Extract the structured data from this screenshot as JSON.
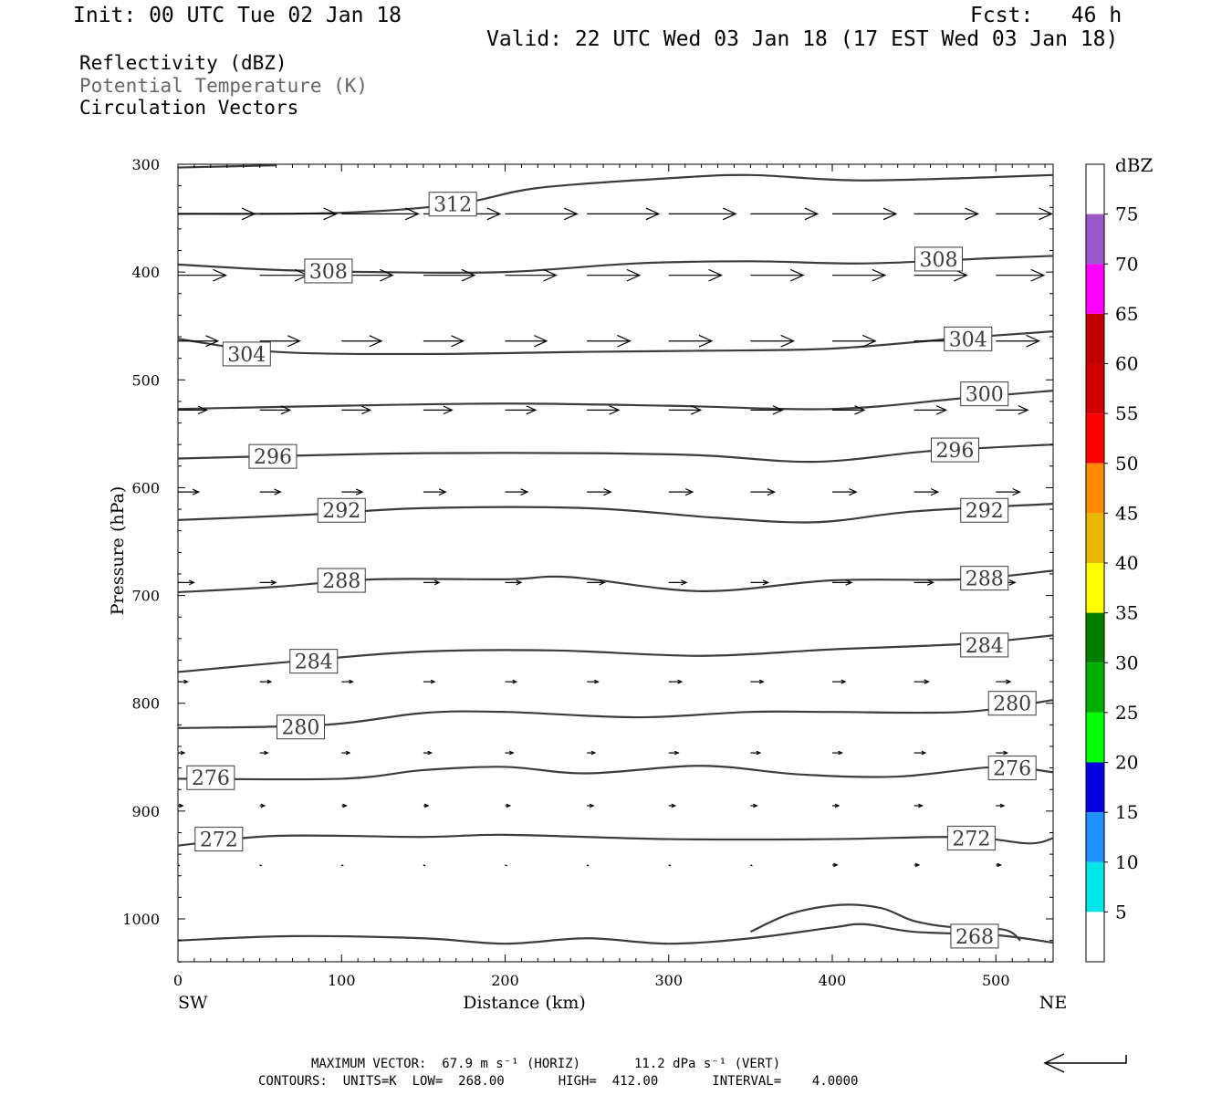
{
  "header": {
    "init": "Init: 00 UTC Tue 02 Jan 18",
    "fcst": "Fcst:   46 h",
    "valid": "Valid: 22 UTC Wed 03 Jan 18 (17 EST Wed 03 Jan 18)"
  },
  "legend": {
    "reflectivity": "Reflectivity (dBZ)",
    "theta": "Potential Temperature (K)",
    "vectors": "Circulation Vectors"
  },
  "footer": {
    "max_vector": "MAXIMUM VECTOR:  67.9 m s⁻¹ (HORIZ)       11.2 dPa s⁻¹ (VERT)",
    "contours": "CONTOURS:  UNITS=K  LOW=  268.00       HIGH=  412.00       INTERVAL=    4.0000"
  },
  "chart_data": {
    "type": "line",
    "title": "",
    "xlabel": "Distance (km)",
    "ylabel": "Pressure (hPa)",
    "xlim": [
      0,
      535
    ],
    "ylim": [
      1040,
      300
    ],
    "x_ticks": [
      0,
      100,
      200,
      300,
      400,
      500
    ],
    "y_ticks": [
      300,
      400,
      500,
      600,
      700,
      800,
      900,
      1000
    ],
    "x_end_labels": {
      "left": "SW",
      "right": "NE"
    },
    "colorbar": {
      "title": "dBZ",
      "labels": [
        75,
        70,
        65,
        60,
        55,
        50,
        45,
        40,
        35,
        30,
        25,
        20,
        15,
        10,
        5
      ],
      "colors": [
        "#ffffff",
        "#9b59c9",
        "#ff00ff",
        "#c00000",
        "#d40000",
        "#ff0000",
        "#ff8c00",
        "#e6b800",
        "#ffff00",
        "#008000",
        "#00b000",
        "#00ff00",
        "#0000e0",
        "#1e90ff",
        "#00e5e5",
        "#ffffff"
      ]
    },
    "series": [
      {
        "name": "312",
        "x": [
          0,
          60,
          150,
          190,
          230,
          300,
          350,
          420,
          535
        ],
        "y": [
          302,
          301,
          301,
          301,
          301,
          301,
          301,
          301,
          301
        ]
      },
      {
        "name": "312",
        "x": [
          0,
          100,
          170,
          220,
          300,
          350,
          420,
          535
        ],
        "y": [
          346,
          345,
          337,
          322,
          313,
          310,
          315,
          310
        ]
      },
      {
        "name": "308",
        "x": [
          0,
          60,
          120,
          200,
          280,
          350,
          420,
          500,
          535
        ],
        "y": [
          393,
          398,
          400,
          400,
          392,
          390,
          392,
          387,
          385
        ]
      },
      {
        "name": "304",
        "x": [
          0,
          60,
          150,
          250,
          320,
          400,
          480,
          535
        ],
        "y": [
          462,
          474,
          476,
          474,
          473,
          471,
          461,
          455
        ]
      },
      {
        "name": "300",
        "x": [
          0,
          100,
          200,
          300,
          400,
          480,
          535
        ],
        "y": [
          527,
          524,
          522,
          524,
          527,
          517,
          510
        ]
      },
      {
        "name": "296",
        "x": [
          0,
          80,
          150,
          250,
          320,
          390,
          460,
          535
        ],
        "y": [
          573,
          570,
          568,
          568,
          570,
          576,
          566,
          560
        ]
      },
      {
        "name": "292",
        "x": [
          0,
          80,
          150,
          250,
          330,
          390,
          450,
          535
        ],
        "y": [
          630,
          625,
          619,
          619,
          628,
          632,
          622,
          615
        ]
      },
      {
        "name": "288",
        "x": [
          0,
          60,
          120,
          200,
          240,
          320,
          400,
          480,
          535
        ],
        "y": [
          697,
          692,
          685,
          685,
          683,
          696,
          686,
          685,
          677
        ]
      },
      {
        "name": "284",
        "x": [
          0,
          80,
          150,
          230,
          320,
          400,
          480,
          535
        ],
        "y": [
          771,
          760,
          752,
          751,
          756,
          750,
          745,
          737
        ]
      },
      {
        "name": "280",
        "x": [
          0,
          90,
          150,
          200,
          280,
          350,
          400,
          480,
          535
        ],
        "y": [
          823,
          820,
          809,
          808,
          813,
          808,
          808,
          808,
          797
        ]
      },
      {
        "name": "276",
        "x": [
          0,
          100,
          150,
          200,
          250,
          320,
          380,
          440,
          500,
          535
        ],
        "y": [
          870,
          870,
          862,
          859,
          865,
          858,
          866,
          868,
          859,
          864
        ]
      },
      {
        "name": "272",
        "x": [
          0,
          60,
          150,
          200,
          300,
          400,
          480,
          520,
          535
        ],
        "y": [
          932,
          923,
          924,
          922,
          926,
          926,
          924,
          930,
          925
        ]
      },
      {
        "name": "268",
        "x": [
          0,
          70,
          150,
          200,
          250,
          300,
          350,
          400,
          420,
          450,
          500,
          535
        ],
        "y": [
          1020,
          1016,
          1018,
          1023,
          1018,
          1023,
          1018,
          1008,
          1005,
          1012,
          1015,
          1022
        ]
      },
      {
        "name": "",
        "x": [
          350,
          375,
          405,
          430,
          450,
          475,
          505,
          515
        ],
        "y": [
          1012,
          995,
          987,
          990,
          1002,
          1008,
          1010,
          1020
        ]
      }
    ],
    "contour_labels": [
      {
        "value": "312",
        "x": 168,
        "y": 337
      },
      {
        "value": "308",
        "x": 92,
        "y": 399
      },
      {
        "value": "308",
        "x": 465,
        "y": 388
      },
      {
        "value": "304",
        "x": 42,
        "y": 476
      },
      {
        "value": "304",
        "x": 483,
        "y": 462
      },
      {
        "value": "300",
        "x": 493,
        "y": 513
      },
      {
        "value": "296",
        "x": 58,
        "y": 571
      },
      {
        "value": "296",
        "x": 475,
        "y": 565
      },
      {
        "value": "292",
        "x": 100,
        "y": 621
      },
      {
        "value": "292",
        "x": 493,
        "y": 621
      },
      {
        "value": "288",
        "x": 100,
        "y": 686
      },
      {
        "value": "288",
        "x": 493,
        "y": 684
      },
      {
        "value": "284",
        "x": 83,
        "y": 761
      },
      {
        "value": "284",
        "x": 493,
        "y": 746
      },
      {
        "value": "280",
        "x": 75,
        "y": 822
      },
      {
        "value": "280",
        "x": 510,
        "y": 800
      },
      {
        "value": "276",
        "x": 20,
        "y": 869
      },
      {
        "value": "276",
        "x": 510,
        "y": 860
      },
      {
        "value": "272",
        "x": 25,
        "y": 926
      },
      {
        "value": "272",
        "x": 485,
        "y": 925
      },
      {
        "value": "268",
        "x": 487,
        "y": 1016
      }
    ],
    "vectors": {
      "x": [
        0,
        50,
        100,
        150,
        200,
        250,
        300,
        350,
        400,
        450,
        500
      ],
      "levels": [
        {
          "p": 346,
          "u": [
            48,
            48,
            48,
            48,
            45,
            45,
            42,
            42,
            40,
            40,
            35
          ]
        },
        {
          "p": 403,
          "u": [
            30,
            30,
            32,
            32,
            32,
            33,
            33,
            33,
            33,
            33,
            30
          ]
        },
        {
          "p": 464,
          "u": [
            25,
            25,
            25,
            25,
            26,
            27,
            27,
            27,
            27,
            27,
            27
          ]
        },
        {
          "p": 528,
          "u": [
            18,
            19,
            18,
            18,
            19,
            20,
            20,
            20,
            20,
            20,
            20
          ]
        },
        {
          "p": 604,
          "u": [
            13,
            13,
            13,
            14,
            14,
            15,
            15,
            15,
            15,
            15,
            15
          ]
        },
        {
          "p": 688,
          "u": [
            10,
            10,
            10,
            10,
            10,
            11,
            11,
            11,
            12,
            12,
            12
          ]
        },
        {
          "p": 780,
          "u": [
            6,
            7,
            7,
            7,
            7,
            7,
            8,
            8,
            8,
            9,
            9
          ]
        },
        {
          "p": 846,
          "u": [
            4,
            5,
            5,
            5,
            5,
            5,
            6,
            6,
            6,
            7,
            7
          ]
        },
        {
          "p": 895,
          "u": [
            3,
            3,
            3,
            3,
            3,
            4,
            4,
            4,
            4,
            5,
            5
          ]
        },
        {
          "p": 950,
          "u": [
            1,
            1,
            1,
            1,
            2,
            2,
            2,
            2,
            3,
            3,
            3
          ]
        }
      ]
    }
  }
}
